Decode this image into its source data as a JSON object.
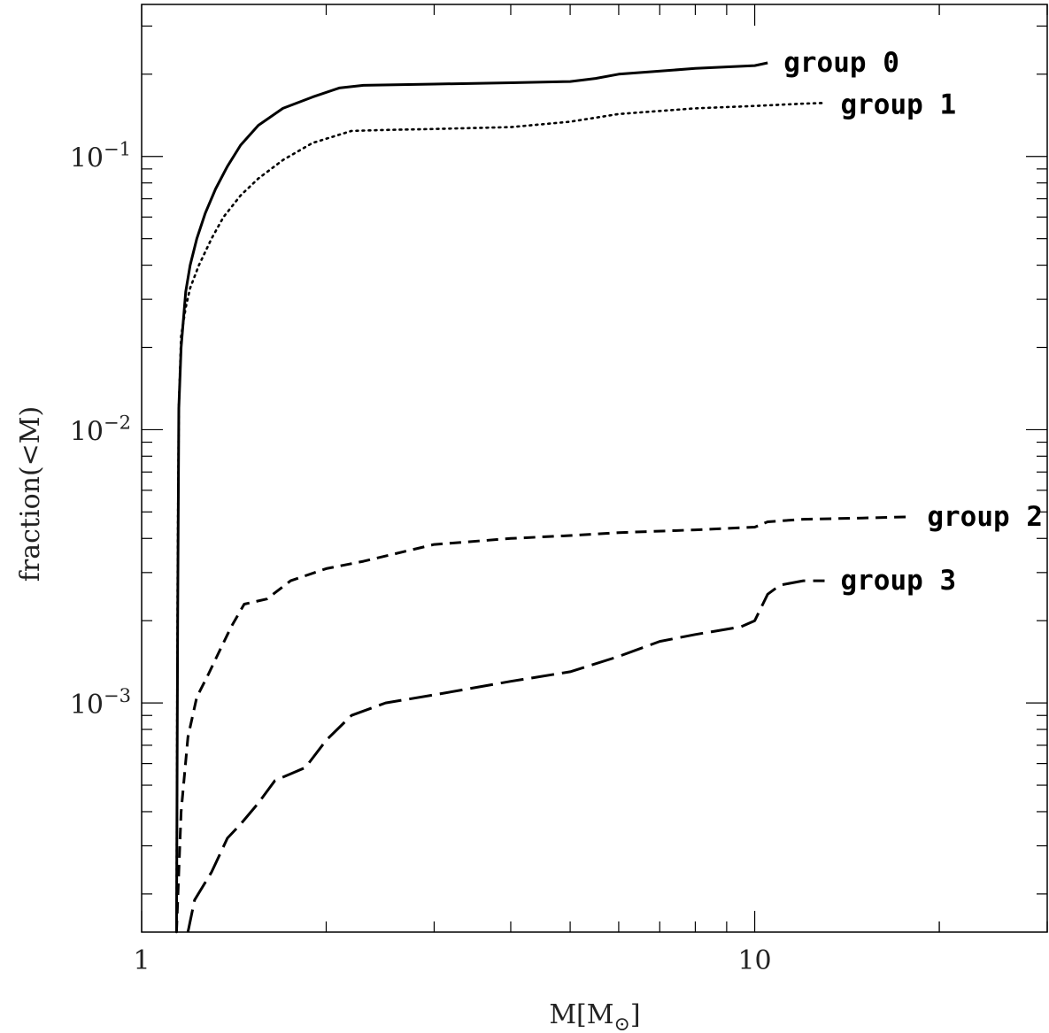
{
  "chart_data": {
    "type": "line",
    "title": "",
    "xlabel": "M[M",
    "xlabel_sub": "⊙",
    "xlabel_close": "]",
    "ylabel": "fraction(<M)",
    "xscale": "log",
    "yscale": "log",
    "xlim": [
      1,
      30
    ],
    "ylim": [
      0.000145,
      0.36
    ],
    "grid": false,
    "legend": "inline labels at line ends",
    "x_tick_labels": [
      "1",
      "10"
    ],
    "y_tick_labels": [
      {
        "base": "10",
        "exp": "−1",
        "value": 0.1
      },
      {
        "base": "10",
        "exp": "−2",
        "value": 0.01
      },
      {
        "base": "10",
        "exp": "−3",
        "value": 0.001
      }
    ],
    "series": [
      {
        "name": "group 0",
        "style": "solid",
        "x": [
          1.14,
          1.145,
          1.15,
          1.16,
          1.18,
          1.2,
          1.23,
          1.27,
          1.32,
          1.38,
          1.45,
          1.55,
          1.7,
          1.9,
          2.1,
          2.3,
          3.0,
          4.0,
          5.0,
          5.5,
          6.0,
          8.0,
          10.0,
          10.5
        ],
        "y": [
          0.000145,
          0.002,
          0.012,
          0.02,
          0.032,
          0.04,
          0.05,
          0.062,
          0.076,
          0.092,
          0.11,
          0.13,
          0.15,
          0.165,
          0.178,
          0.182,
          0.184,
          0.186,
          0.188,
          0.193,
          0.2,
          0.21,
          0.215,
          0.22
        ]
      },
      {
        "name": "group 1",
        "style": "dotted",
        "x": [
          1.14,
          1.145,
          1.15,
          1.16,
          1.18,
          1.2,
          1.24,
          1.3,
          1.36,
          1.45,
          1.55,
          1.7,
          1.9,
          2.2,
          2.5,
          3.0,
          4.0,
          5.0,
          6.0,
          8.0,
          10.0,
          12.0,
          13.0
        ],
        "y": [
          0.000145,
          0.003,
          0.012,
          0.022,
          0.028,
          0.033,
          0.04,
          0.05,
          0.06,
          0.072,
          0.083,
          0.097,
          0.112,
          0.124,
          0.125,
          0.126,
          0.128,
          0.134,
          0.143,
          0.15,
          0.153,
          0.156,
          0.157
        ]
      },
      {
        "name": "group 2",
        "style": "dashed",
        "x": [
          1.14,
          1.16,
          1.19,
          1.23,
          1.28,
          1.34,
          1.4,
          1.47,
          1.6,
          1.75,
          2.0,
          2.3,
          3.0,
          4.0,
          5.0,
          6.0,
          8.0,
          10.0,
          10.5,
          12.0,
          15.0,
          18.0
        ],
        "y": [
          0.000145,
          0.0004,
          0.00075,
          0.00105,
          0.00125,
          0.00155,
          0.0019,
          0.0023,
          0.0024,
          0.0028,
          0.0031,
          0.0033,
          0.0038,
          0.004,
          0.0041,
          0.0042,
          0.0043,
          0.0044,
          0.0046,
          0.0047,
          0.00475,
          0.0048
        ]
      },
      {
        "name": "group 3",
        "style": "long-dashed",
        "x": [
          1.19,
          1.22,
          1.3,
          1.38,
          1.45,
          1.55,
          1.65,
          1.75,
          1.85,
          2.0,
          2.2,
          2.5,
          3.0,
          4.0,
          5.0,
          6.0,
          7.0,
          8.0,
          9.5,
          10.0,
          10.5,
          11.0,
          12.0,
          13.0
        ],
        "y": [
          0.000145,
          0.00019,
          0.00024,
          0.00032,
          0.00036,
          0.00043,
          0.00052,
          0.00055,
          0.00058,
          0.00073,
          0.0009,
          0.001,
          0.00107,
          0.0012,
          0.0013,
          0.00148,
          0.00168,
          0.00178,
          0.0019,
          0.002,
          0.0025,
          0.0027,
          0.0028,
          0.0028
        ]
      }
    ]
  }
}
